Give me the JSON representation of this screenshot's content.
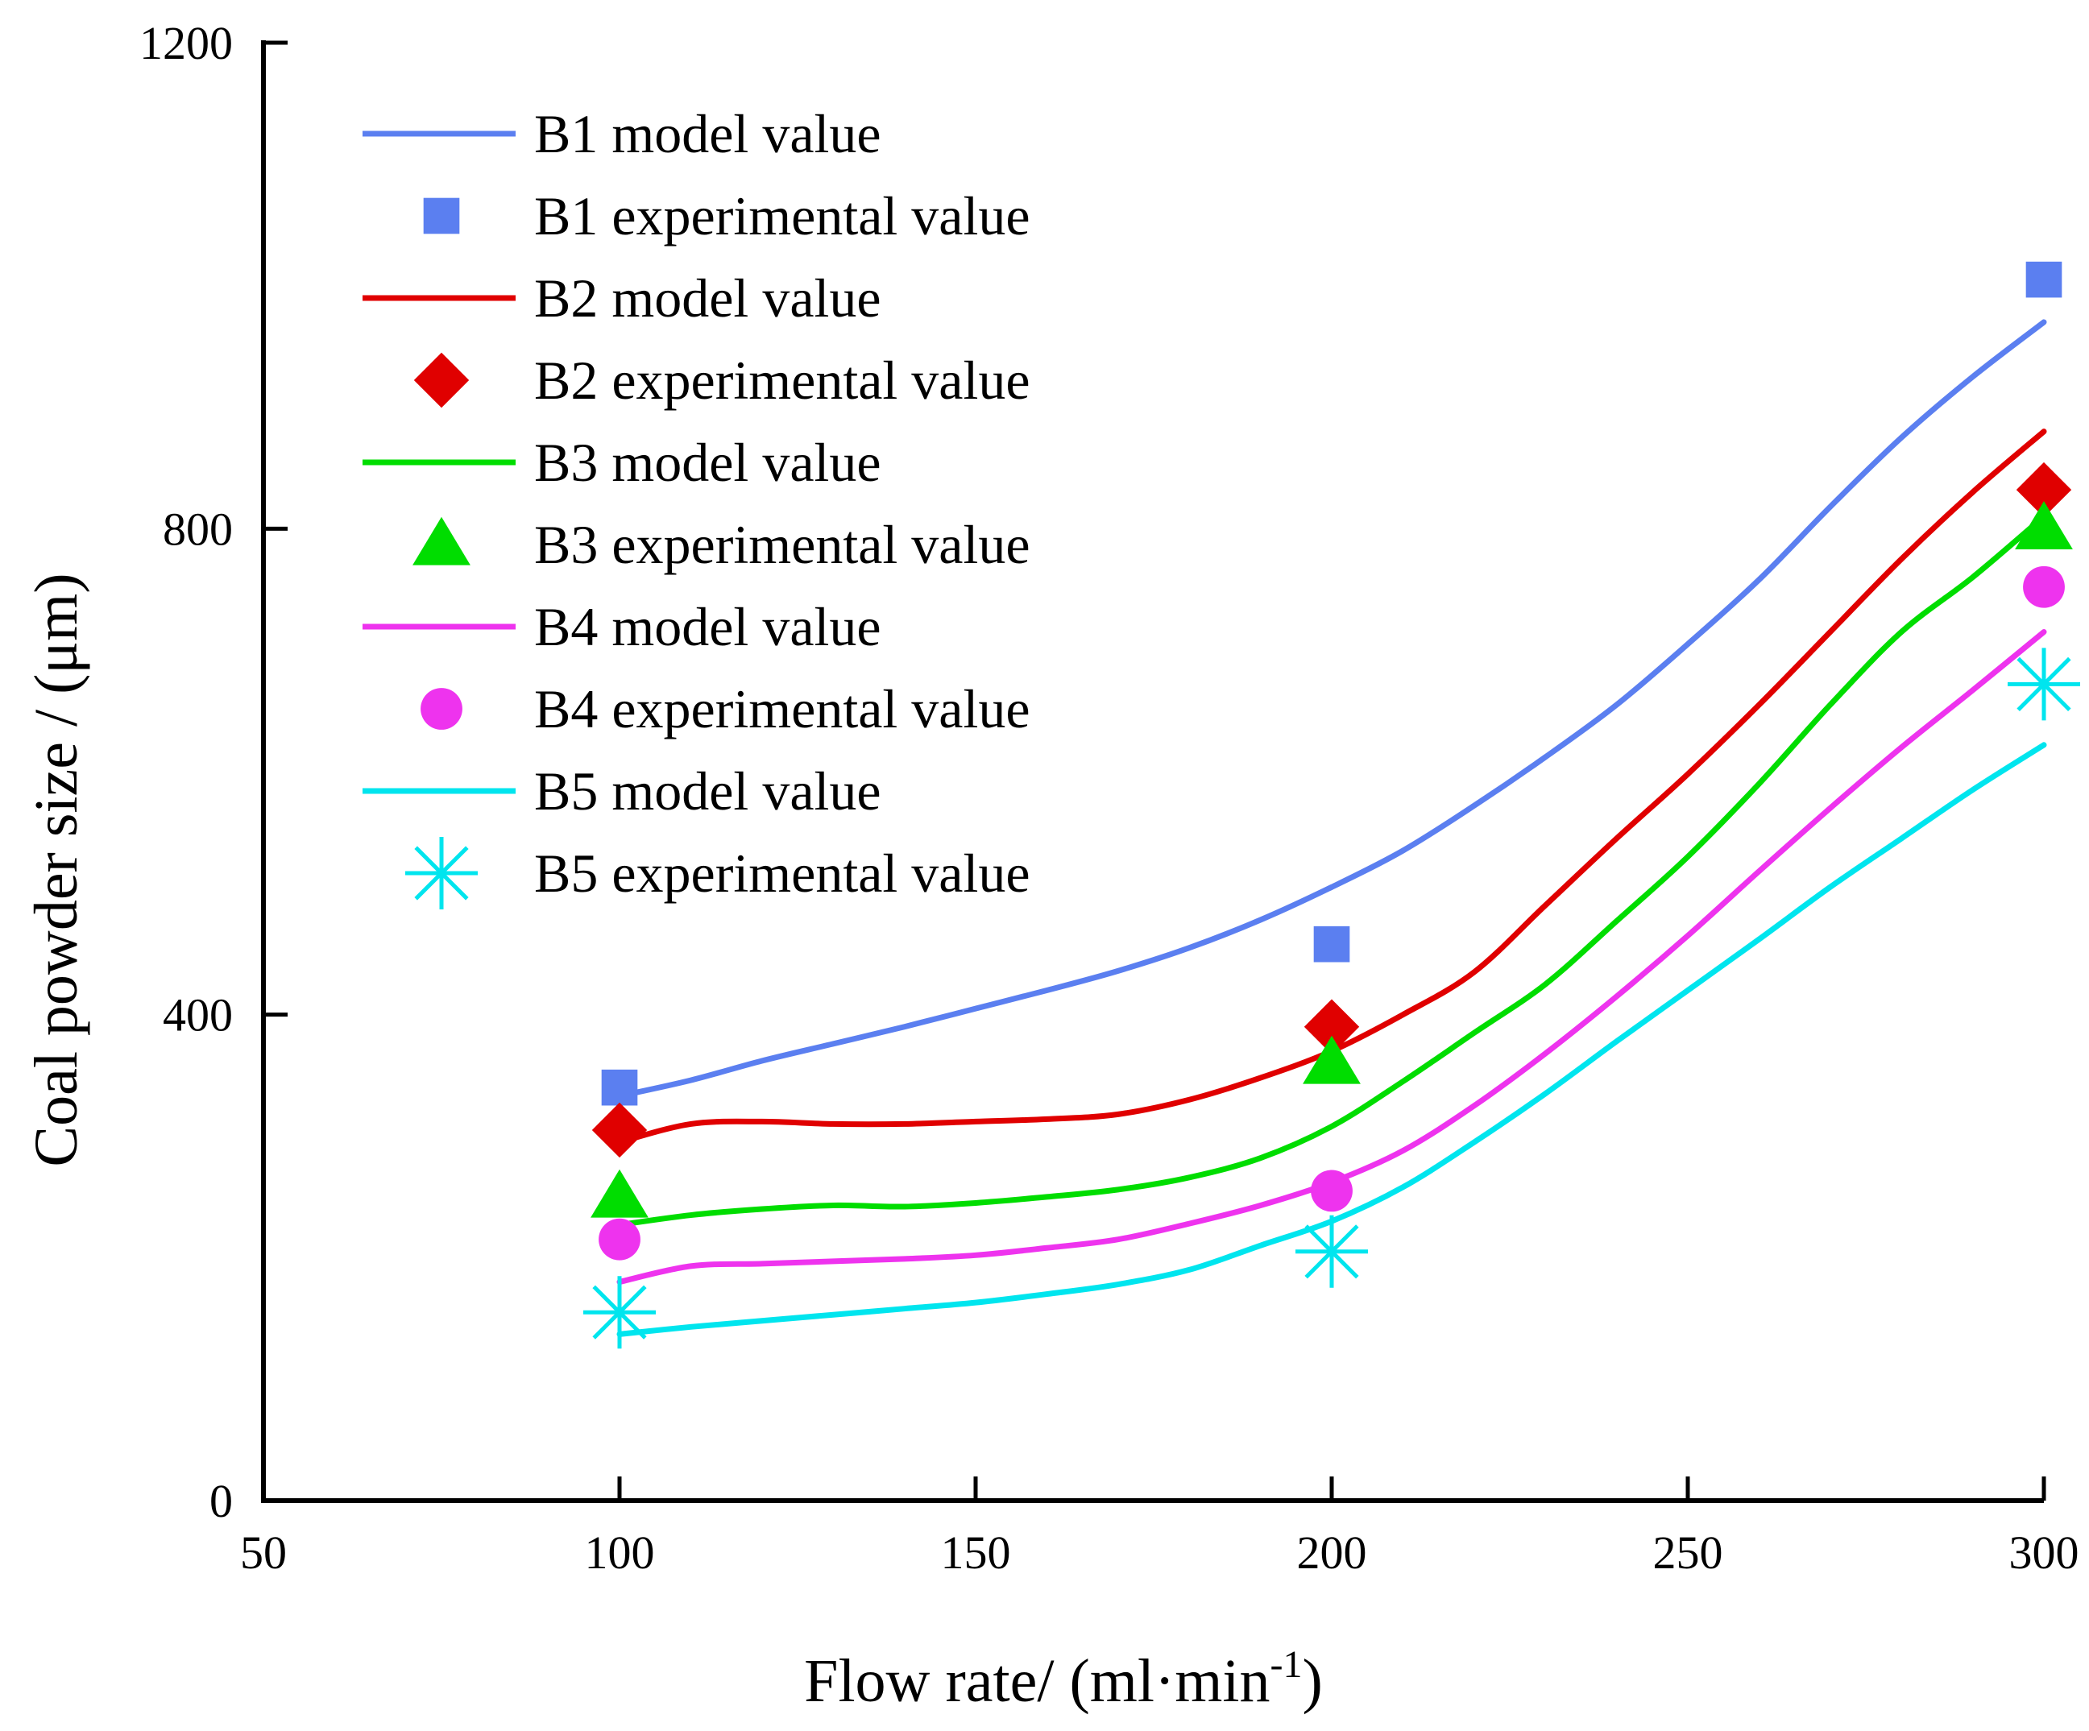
{
  "chart_data": {
    "type": "line",
    "xlabel": "Flow rate/ (ml·min",
    "xlabel_sup": "-1",
    "xlabel_close": ")",
    "ylabel": "Coal powder size / (μm)",
    "xlim": [
      50,
      300
    ],
    "ylim": [
      0,
      1200
    ],
    "x_ticks": [
      "50",
      "100",
      "150",
      "200",
      "250",
      "300"
    ],
    "y_ticks": [
      "0",
      "400",
      "800",
      "1200"
    ],
    "series": [
      {
        "name": "B1 model value",
        "kind": "line",
        "color": "#5b7ff0",
        "x": [
          100,
          110,
          120,
          130,
          140,
          150,
          160,
          170,
          180,
          190,
          200,
          210,
          220,
          230,
          240,
          250,
          260,
          270,
          280,
          290,
          300
        ],
        "values": [
          333,
          346,
          362,
          376,
          390,
          405,
          420,
          436,
          455,
          478,
          505,
          535,
          572,
          612,
          655,
          705,
          758,
          818,
          875,
          925,
          970
        ]
      },
      {
        "name": "B1 experimental value",
        "kind": "square",
        "color": "#5b7ff0",
        "x": [
          100,
          200,
          300
        ],
        "values": [
          340,
          458,
          1005
        ]
      },
      {
        "name": "B2 model value",
        "kind": "line",
        "color": "#e00000",
        "x": [
          100,
          110,
          120,
          130,
          140,
          150,
          160,
          170,
          180,
          190,
          200,
          210,
          220,
          230,
          240,
          250,
          260,
          270,
          280,
          290,
          300
        ],
        "values": [
          295,
          310,
          312,
          310,
          310,
          312,
          314,
          318,
          330,
          348,
          370,
          400,
          435,
          490,
          545,
          598,
          655,
          715,
          775,
          830,
          880
        ]
      },
      {
        "name": "B2 experimental value",
        "kind": "diamond",
        "color": "#e00000",
        "x": [
          100,
          200,
          300
        ],
        "values": [
          305,
          390,
          832
        ]
      },
      {
        "name": "B3 model value",
        "kind": "line",
        "color": "#00dd00",
        "x": [
          100,
          110,
          120,
          130,
          140,
          150,
          160,
          170,
          180,
          190,
          200,
          210,
          220,
          230,
          240,
          250,
          260,
          270,
          280,
          290,
          300
        ],
        "values": [
          227,
          235,
          240,
          243,
          242,
          245,
          250,
          256,
          266,
          282,
          308,
          345,
          385,
          425,
          477,
          530,
          590,
          655,
          715,
          760,
          810
        ]
      },
      {
        "name": "B3 experimental value",
        "kind": "triangle",
        "color": "#00dd00",
        "x": [
          100,
          200,
          300
        ],
        "values": [
          250,
          360,
          800
        ]
      },
      {
        "name": "B4 model value",
        "kind": "line",
        "color": "#ee33ee",
        "x": [
          100,
          110,
          120,
          130,
          140,
          150,
          160,
          170,
          180,
          190,
          200,
          210,
          220,
          230,
          240,
          250,
          260,
          270,
          280,
          290,
          300
        ],
        "values": [
          180,
          193,
          195,
          197,
          199,
          202,
          208,
          215,
          228,
          243,
          262,
          288,
          325,
          368,
          415,
          465,
          518,
          570,
          620,
          667,
          715
        ]
      },
      {
        "name": "B4 experimental value",
        "kind": "circle",
        "color": "#ee33ee",
        "x": [
          100,
          200,
          300
        ],
        "values": [
          215,
          255,
          752
        ]
      },
      {
        "name": "B5 model value",
        "kind": "line",
        "color": "#00e5ee",
        "x": [
          100,
          110,
          120,
          130,
          140,
          150,
          160,
          170,
          180,
          190,
          200,
          210,
          220,
          230,
          240,
          250,
          260,
          270,
          280,
          290,
          300
        ],
        "values": [
          137,
          143,
          148,
          153,
          158,
          163,
          170,
          178,
          190,
          210,
          230,
          258,
          295,
          335,
          378,
          420,
          462,
          505,
          545,
          585,
          622
        ]
      },
      {
        "name": "B5 experimental value",
        "kind": "asterisk",
        "color": "#00e5ee",
        "x": [
          100,
          200,
          300
        ],
        "values": [
          155,
          205,
          672
        ]
      }
    ]
  }
}
